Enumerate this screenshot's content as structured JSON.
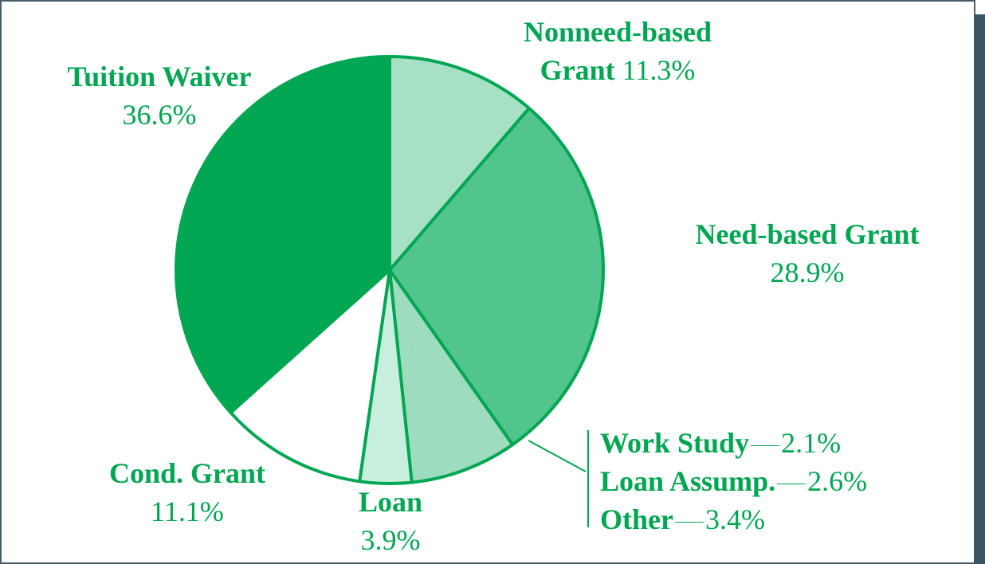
{
  "chart_data": {
    "type": "pie",
    "categories": [
      "Nonneed-based Grant",
      "Need-based Grant",
      "Work Study",
      "Loan Assump.",
      "Other",
      "Loan",
      "Cond. Grant",
      "Tuition Waiver"
    ],
    "values": [
      11.3,
      28.9,
      2.1,
      2.6,
      3.4,
      3.9,
      11.1,
      36.6
    ],
    "value_labels": [
      "11.3%",
      "28.9%",
      "2.1%",
      "2.6%",
      "3.4%",
      "3.9%",
      "11.1%",
      "36.6%"
    ],
    "colors": [
      "#a6e1c5",
      "#52c48d",
      "#9ddcbf",
      "#9ddcbf",
      "#9ddcbf",
      "#c8eedd",
      "#ffffff",
      "#00a651"
    ]
  }
}
